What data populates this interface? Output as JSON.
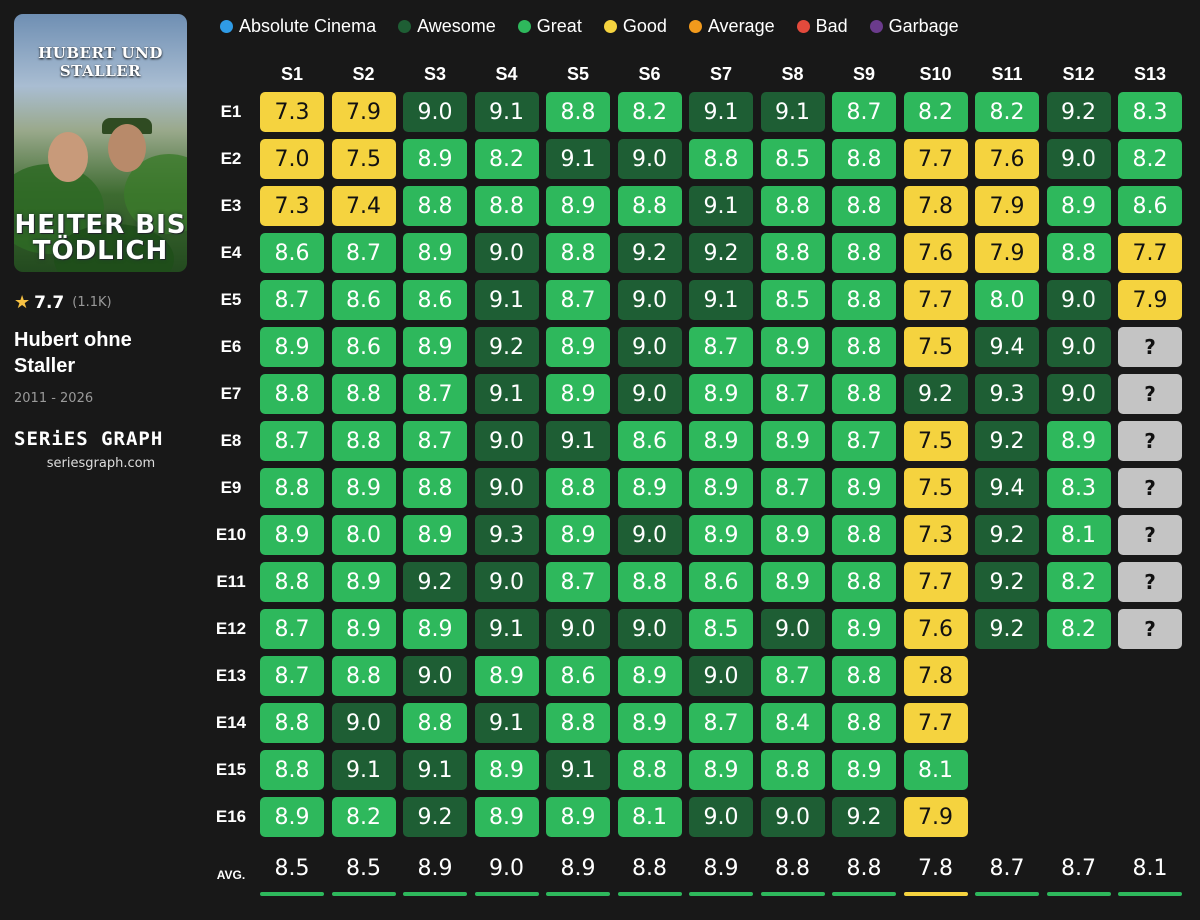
{
  "show": {
    "poster_title": "HUBERT UND STALLER",
    "poster_subtitle_line1": "HEITER BIS",
    "poster_subtitle_line2": "TÖDLICH",
    "rating": "7.7",
    "votes": "(1.1K)",
    "title": "Hubert ohne Staller",
    "years": "2011 - 2026",
    "brand": "SERiES GRAPH",
    "site": "seriesgraph.com"
  },
  "legend": [
    {
      "label": "Absolute Cinema",
      "color": "#2f9be6"
    },
    {
      "label": "Awesome",
      "color": "#1e5e34"
    },
    {
      "label": "Great",
      "color": "#2eb85c"
    },
    {
      "label": "Good",
      "color": "#f5d33f"
    },
    {
      "label": "Average",
      "color": "#f29a1c"
    },
    {
      "label": "Bad",
      "color": "#e34a3c"
    },
    {
      "label": "Garbage",
      "color": "#6b3b8c"
    }
  ],
  "chart_data": {
    "type": "heatmap",
    "seasons": [
      "S1",
      "S2",
      "S3",
      "S4",
      "S5",
      "S6",
      "S7",
      "S8",
      "S9",
      "S10",
      "S11",
      "S12",
      "S13"
    ],
    "episodes": [
      "E1",
      "E2",
      "E3",
      "E4",
      "E5",
      "E6",
      "E7",
      "E8",
      "E9",
      "E10",
      "E11",
      "E12",
      "E13",
      "E14",
      "E15",
      "E16"
    ],
    "unknown_symbol": "?",
    "ratings": [
      [
        7.3,
        7.0,
        7.3,
        8.6,
        8.7,
        8.9,
        8.8,
        8.7,
        8.8,
        8.9,
        8.8,
        8.7,
        8.7,
        8.8,
        8.8,
        8.9
      ],
      [
        7.9,
        7.5,
        7.4,
        8.7,
        8.6,
        8.6,
        8.8,
        8.8,
        8.9,
        8.0,
        8.9,
        8.9,
        8.8,
        9.0,
        9.1,
        8.2
      ],
      [
        9.0,
        8.9,
        8.8,
        8.9,
        8.6,
        8.9,
        8.7,
        8.7,
        8.8,
        8.9,
        9.2,
        8.9,
        9.0,
        8.8,
        9.1,
        9.2
      ],
      [
        9.1,
        8.2,
        8.8,
        9.0,
        9.1,
        9.2,
        9.1,
        9.0,
        9.0,
        9.3,
        9.0,
        9.1,
        8.9,
        9.1,
        8.9,
        8.9
      ],
      [
        8.8,
        9.1,
        8.9,
        8.8,
        8.7,
        8.9,
        8.9,
        9.1,
        8.8,
        8.9,
        8.7,
        9.0,
        8.6,
        8.8,
        9.1,
        8.9
      ],
      [
        8.2,
        9.0,
        8.8,
        9.2,
        9.0,
        9.0,
        9.0,
        8.6,
        8.9,
        9.0,
        8.8,
        9.0,
        8.9,
        8.9,
        8.8,
        8.1
      ],
      [
        9.1,
        8.8,
        9.1,
        9.2,
        9.1,
        8.7,
        8.9,
        8.9,
        8.9,
        8.9,
        8.6,
        8.5,
        9.0,
        8.7,
        8.9,
        9.0
      ],
      [
        9.1,
        8.5,
        8.8,
        8.8,
        8.5,
        8.9,
        8.7,
        8.9,
        8.7,
        8.9,
        8.9,
        9.0,
        8.7,
        8.4,
        8.8,
        9.0
      ],
      [
        8.7,
        8.8,
        8.8,
        8.8,
        8.8,
        8.8,
        8.8,
        8.7,
        8.9,
        8.8,
        8.8,
        8.9,
        8.8,
        8.8,
        8.9,
        9.2
      ],
      [
        8.2,
        7.7,
        7.8,
        7.6,
        7.7,
        7.5,
        9.2,
        7.5,
        7.5,
        7.3,
        7.7,
        7.6,
        7.8,
        7.7,
        8.1,
        7.9
      ],
      [
        8.2,
        7.6,
        7.9,
        7.9,
        8.0,
        9.4,
        9.3,
        9.2,
        9.4,
        9.2,
        9.2,
        9.2
      ],
      [
        9.2,
        9.0,
        8.9,
        8.8,
        9.0,
        9.0,
        9.0,
        8.9,
        8.3,
        8.1,
        8.2,
        8.2
      ],
      [
        8.3,
        8.2,
        8.6,
        7.7,
        7.9,
        null,
        null,
        null,
        null,
        null,
        null,
        null
      ]
    ],
    "averages": [
      8.5,
      8.5,
      8.9,
      9.0,
      8.9,
      8.8,
      8.9,
      8.8,
      8.8,
      7.8,
      8.7,
      8.7,
      8.1
    ],
    "avg_label": "AVG.",
    "colors": {
      "awesome": "#1e5e34",
      "great": "#2eb85c",
      "good": "#f5d33f",
      "unknown": "#c4c4c4"
    }
  }
}
